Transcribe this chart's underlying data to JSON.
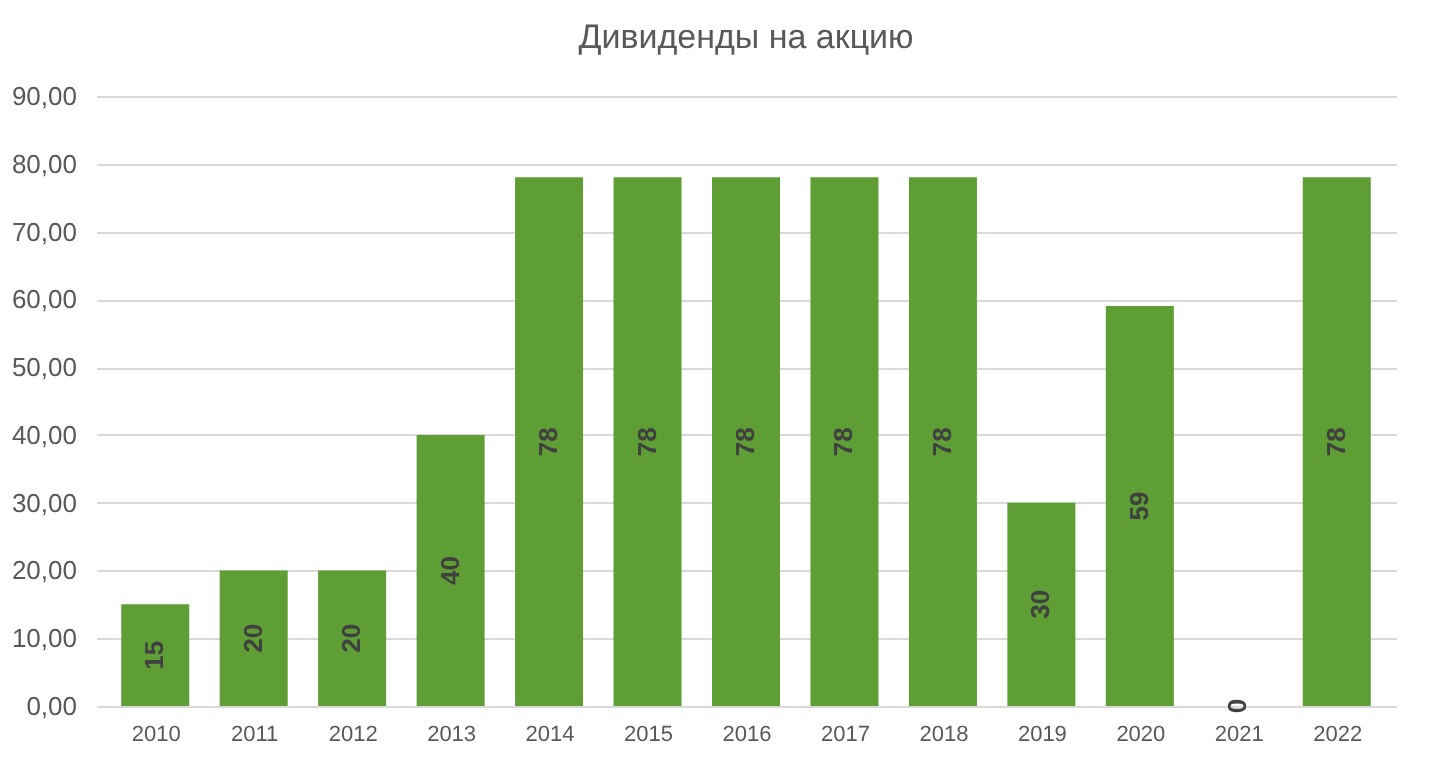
{
  "chart_data": {
    "type": "bar",
    "title": "Дивиденды на акцию",
    "categories": [
      "2010",
      "2011",
      "2012",
      "2013",
      "2014",
      "2015",
      "2016",
      "2017",
      "2018",
      "2019",
      "2020",
      "2021",
      "2022"
    ],
    "values": [
      15,
      20,
      20,
      40,
      78,
      78,
      78,
      78,
      78,
      30,
      59,
      0,
      78
    ],
    "color": "#5e9e34",
    "ylim": [
      0,
      90
    ],
    "yticks": [
      {
        "value": 0,
        "label": "0,00"
      },
      {
        "value": 10,
        "label": "10,00"
      },
      {
        "value": 20,
        "label": "20,00"
      },
      {
        "value": 30,
        "label": "30,00"
      },
      {
        "value": 40,
        "label": "40,00"
      },
      {
        "value": 50,
        "label": "50,00"
      },
      {
        "value": 60,
        "label": "60,00"
      },
      {
        "value": 70,
        "label": "70,00"
      },
      {
        "value": 80,
        "label": "80,00"
      },
      {
        "value": 90,
        "label": "90,00"
      }
    ],
    "grid": "y",
    "data_labels": true
  }
}
